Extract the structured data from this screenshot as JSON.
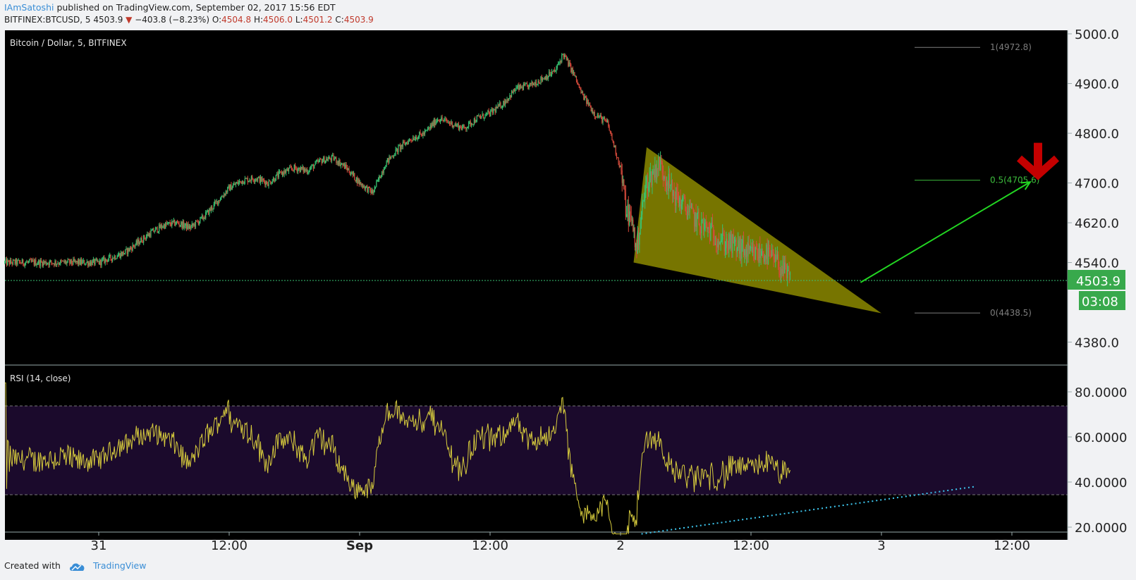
{
  "header": {
    "author": "IAmSatoshi",
    "published": " published on TradingView.com, September 02, 2017 15:56 EDT",
    "symbol": "BITFINEX:BTCUSD, 5",
    "price": "4503.9",
    "change": "−403.8 (−8.23%)",
    "o_label": "O:",
    "o_val": "4504.8",
    "h_label": "H:",
    "h_val": "4506.0",
    "l_label": "L:",
    "l_val": "4501.2",
    "c_label": "C:",
    "c_val": "4503.9",
    "down_icon": "triangle-down-icon"
  },
  "footer": {
    "created": "Created with",
    "brand": "TradingView",
    "logo_icon": "tradingview-cloud-icon"
  },
  "colors": {
    "background": "#000000",
    "up": "#38c472",
    "down": "#d64a3b",
    "rsi_line": "#d7cc3d",
    "rsi_band": "#1b0a2c",
    "wedge": "#8c8a00",
    "fib_mid": "#3dbd3d",
    "price_tag": "#38a94c",
    "arrow_green": "#22d622",
    "arrow_red": "#c40000",
    "trendline": "#3ec8f0"
  },
  "chart_data": [
    {
      "type": "candlestick",
      "title": "Bitcoin / Dollar, 5, BITFINEX",
      "x_labels": [
        "31",
        "12:00",
        "Sep",
        "12:00",
        "2",
        "12:00",
        "3",
        "12:00"
      ],
      "y_ticks": [
        "5000.0",
        "4900.0",
        "4800.0",
        "4700.0",
        "4620.0",
        "4540.0",
        "4380.0"
      ],
      "y_tick_values": [
        5000,
        4900,
        4800,
        4700,
        4620,
        4540,
        4380
      ],
      "ylim": [
        4365,
        5000
      ],
      "close_path": {
        "t": [
          0,
          0.05,
          0.1,
          0.15,
          0.2,
          0.25,
          0.3,
          0.35,
          0.4,
          0.45,
          0.5,
          0.55,
          0.6,
          0.65,
          0.7,
          0.75,
          0.8,
          0.85,
          0.9,
          0.95,
          1.0,
          1.05,
          1.1,
          1.15,
          1.2,
          1.25,
          1.3,
          1.35,
          1.4,
          1.45,
          1.5,
          1.55,
          1.6,
          1.65,
          1.7,
          1.75,
          1.78,
          1.82,
          1.85,
          1.9,
          1.95,
          2.0,
          2.02,
          2.05,
          2.06,
          2.08,
          2.1,
          2.15,
          2.2,
          2.25,
          2.3,
          2.35,
          2.4,
          2.45,
          2.5,
          2.55,
          2.6,
          2.65
        ],
        "price": [
          4540,
          4550,
          4560,
          4580,
          4600,
          4615,
          4620,
          4610,
          4630,
          4660,
          4690,
          4705,
          4710,
          4700,
          4720,
          4730,
          4725,
          4745,
          4750,
          4730,
          4700,
          4680,
          4740,
          4770,
          4790,
          4800,
          4830,
          4820,
          4810,
          4830,
          4840,
          4860,
          4890,
          4895,
          4910,
          4925,
          4960,
          4920,
          4880,
          4840,
          4820,
          4730,
          4650,
          4610,
          4560,
          4640,
          4700,
          4740,
          4680,
          4650,
          4620,
          4600,
          4580,
          4570,
          4555,
          4560,
          4540,
          4503.9
        ]
      },
      "current_price": "4503.9",
      "countdown": "03:08",
      "fib_levels": [
        {
          "level": "1",
          "price": 4972.8,
          "label": "1(4972.8)"
        },
        {
          "level": "0.5",
          "price": 4705.6,
          "label": "0.5(4705.6)"
        },
        {
          "level": "0",
          "price": 4438.5,
          "label": "0(4438.5)"
        }
      ],
      "annotations": {
        "wedge": {
          "top": [
            2.1,
            4772
          ],
          "bottom": [
            2.05,
            4540
          ],
          "apex": [
            3.0,
            4438
          ]
        },
        "green_arrow": {
          "from": [
            2.92,
            4500
          ],
          "to": [
            3.57,
            4702
          ]
        },
        "red_arrow": {
          "at": [
            3.6,
            4700
          ]
        }
      }
    },
    {
      "type": "line",
      "title": "RSI (14, close)",
      "y_ticks": [
        "80.0000",
        "60.0000",
        "40.0000",
        "20.0000"
      ],
      "y_tick_values": [
        80,
        60,
        40,
        20
      ],
      "ylim": [
        15,
        84
      ],
      "band": [
        30,
        70
      ],
      "trendline": {
        "from": [
          2.08,
          17
        ],
        "to": [
          3.36,
          38
        ]
      }
    }
  ]
}
